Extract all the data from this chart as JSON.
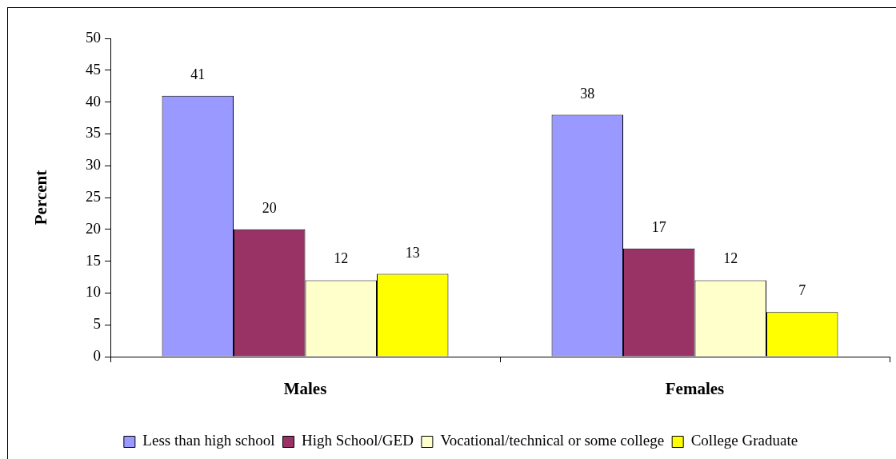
{
  "chart_data": {
    "type": "bar",
    "categories": [
      "Males",
      "Females"
    ],
    "ylabel": "Percent",
    "ylim": [
      0,
      50
    ],
    "yticks": [
      0,
      5,
      10,
      15,
      20,
      25,
      30,
      35,
      40,
      45,
      50
    ],
    "legend": "bottom",
    "data_labels": true,
    "series": [
      {
        "name": "Less than high school",
        "color": "#9999ff",
        "values": [
          41,
          38
        ]
      },
      {
        "name": "High School/GED",
        "color": "#993366",
        "values": [
          20,
          17
        ]
      },
      {
        "name": "Vocational/technical or some college",
        "color": "#ffffcc",
        "values": [
          12,
          12
        ]
      },
      {
        "name": "College Graduate",
        "color": "#ffff00",
        "values": [
          13,
          7
        ]
      }
    ]
  }
}
